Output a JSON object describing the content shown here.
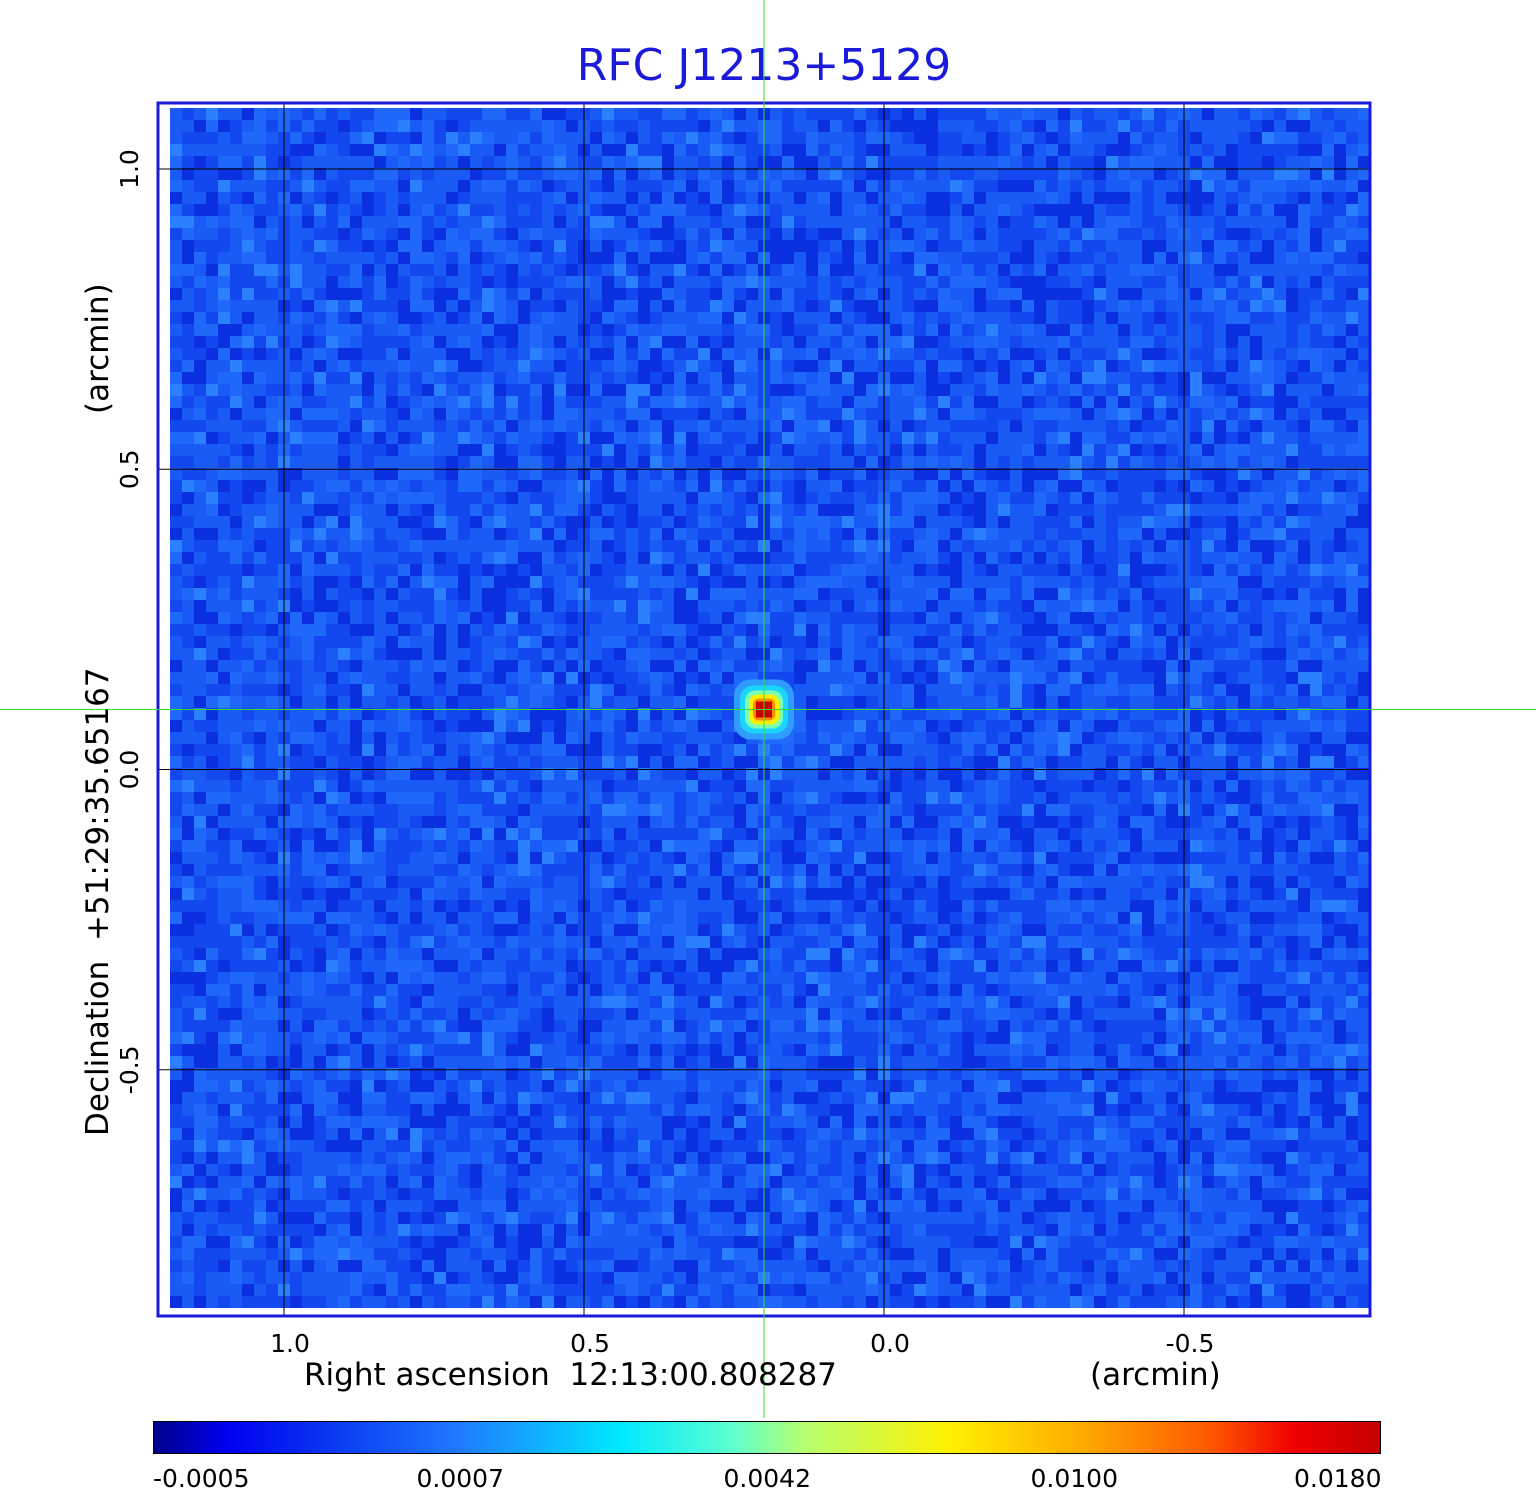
{
  "title": "RFC J1213+5129",
  "colors": {
    "title": "#1a1ad8",
    "frame": "#1a1ad8",
    "background_noise": "#1450f0",
    "crosshair": "#33dd33",
    "grid": "#000000"
  },
  "chart_data": {
    "type": "heatmap",
    "title": "RFC J1213+5129",
    "xlabel": "Right ascension  12:13:00.808287",
    "xunit": "(arcmin)",
    "ylabel": "Declination  +51:29:35.65167",
    "yunit": "(arcmin)",
    "x_ticks": [
      "1.0",
      "0.5",
      "0.0",
      "-0.5"
    ],
    "x_tick_values": [
      1.0,
      0.5,
      0.0,
      -0.5
    ],
    "y_ticks": [
      "1.0",
      "0.5",
      "0.0",
      "-0.5"
    ],
    "y_tick_values": [
      1.0,
      0.5,
      0.0,
      -0.5
    ],
    "xlim": [
      1.21,
      -0.81
    ],
    "ylim": [
      -0.91,
      1.11
    ],
    "grid": true,
    "source_peak": {
      "x": 0.2,
      "y": 0.1,
      "value": 0.018
    },
    "crosshair": {
      "x": 0.2,
      "y": 0.1
    },
    "colorbar": {
      "ticks": [
        "-0.0005",
        "0.0007",
        "0.0042",
        "0.0100",
        "0.0180"
      ],
      "values": [
        -0.0005,
        0.0007,
        0.0042,
        0.01,
        0.018
      ],
      "colormap": "jet",
      "placement": "bottom"
    }
  }
}
